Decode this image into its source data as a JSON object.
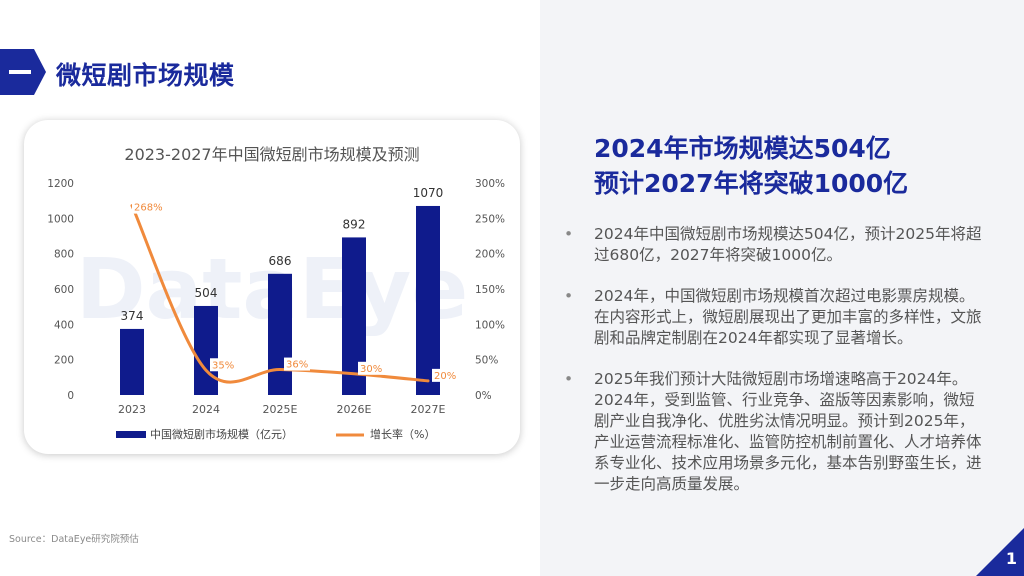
{
  "header": {
    "title": "微短剧市场规模"
  },
  "chart_data": {
    "type": "bar",
    "title": "2023-2027年中国微短剧市场规模及预测",
    "watermark": "DataEye",
    "categories": [
      "2023",
      "2024",
      "2025E",
      "2026E",
      "2027E"
    ],
    "series": [
      {
        "name": "中国微短剧市场规模（亿元）",
        "type": "bar",
        "axis": "left",
        "values": [
          374,
          504,
          686,
          892,
          1070
        ],
        "color": "#0f1b8c"
      },
      {
        "name": "增长率（%）",
        "type": "line",
        "axis": "right",
        "values": [
          268,
          35,
          36,
          30,
          20
        ],
        "labels": [
          "268%",
          "35%",
          "36%",
          "30%",
          "20%"
        ],
        "color": "#f08a3c"
      }
    ],
    "y_left": {
      "min": 0,
      "max": 1200,
      "ticks": [
        "0",
        "200",
        "400",
        "600",
        "800",
        "1000",
        "1200"
      ]
    },
    "y_right": {
      "min": 0,
      "max": 300,
      "ticks": [
        "0%",
        "50%",
        "100%",
        "150%",
        "200%",
        "250%",
        "300%"
      ]
    },
    "grid": false,
    "legend_position": "bottom"
  },
  "source": "Source：DataEye研究院预估",
  "headline": {
    "line1": "2024年市场规模达504亿",
    "line2": "预计2027年将突破1000亿"
  },
  "bullets": [
    "2024年中国微短剧市场规模达504亿，预计2025年将超过680亿，2027年将突破1000亿。",
    "2024年，中国微短剧市场规模首次超过电影票房规模。在内容形式上，微短剧展现出了更加丰富的多样性，文旅剧和品牌定制剧在2024年都实现了显著增长。",
    "2025年我们预计大陆微短剧市场增速略高于2024年。2024年，受到监管、行业竞争、盗版等因素影响，微短剧产业自我净化、优胜劣汰情况明显。预计到2025年，产业运营流程标准化、监管防控机制前置化、人才培养体系专业化、技术应用场景多元化，基本告别野蛮生长，进一步走向高质量发展。"
  ],
  "bullet_symbol": "•",
  "page": {
    "number": "1"
  },
  "colors": {
    "brand": "#1a2a9c",
    "bar": "#0f1b8c",
    "line": "#f08a3c",
    "panel_bg": "#f3f4f7"
  }
}
